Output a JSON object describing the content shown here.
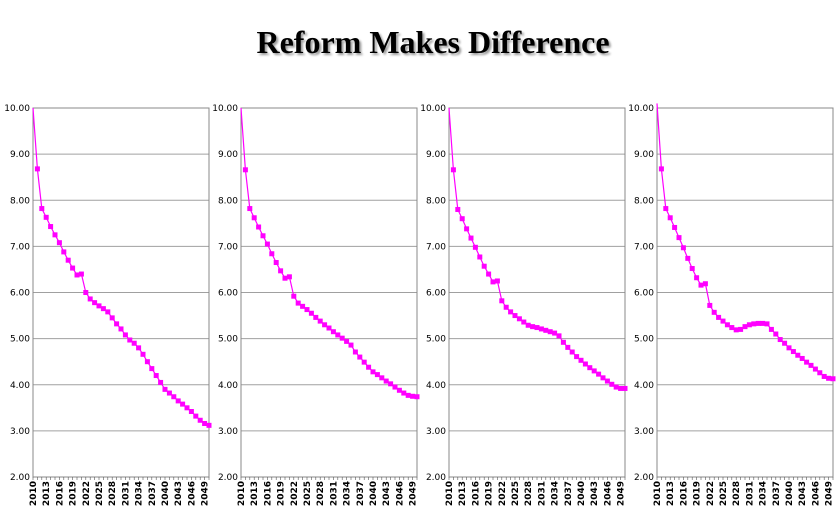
{
  "title": "Reform Makes Difference",
  "colors": {
    "series": "#ff00ff",
    "grid": "#a0a0a0",
    "frame": "#888888"
  },
  "chart_data": [
    {
      "type": "line",
      "marker": "square",
      "ylim": [
        2,
        10
      ],
      "yticks": [
        "2.00",
        "3.00",
        "4.00",
        "5.00",
        "6.00",
        "7.00",
        "8.00",
        "9.00",
        "10.00"
      ],
      "xticks": [
        "2010",
        "2013",
        "2016",
        "2019",
        "2022",
        "2025",
        "2028",
        "2031",
        "2034",
        "2037",
        "2040",
        "2043",
        "2046",
        "2049"
      ],
      "x": [
        2010,
        2011,
        2012,
        2013,
        2014,
        2015,
        2016,
        2017,
        2018,
        2019,
        2020,
        2021,
        2022,
        2023,
        2024,
        2025,
        2026,
        2027,
        2028,
        2029,
        2030,
        2031,
        2032,
        2033,
        2034,
        2035,
        2036,
        2037,
        2038,
        2039,
        2040,
        2041,
        2042,
        2043,
        2044,
        2045,
        2046,
        2047,
        2048,
        2049,
        2050
      ],
      "values": [
        10.0,
        8.68,
        7.82,
        7.63,
        7.43,
        7.25,
        7.08,
        6.88,
        6.7,
        6.53,
        6.38,
        6.4,
        6.0,
        5.86,
        5.78,
        5.71,
        5.65,
        5.58,
        5.45,
        5.32,
        5.21,
        5.08,
        4.97,
        4.9,
        4.8,
        4.66,
        4.5,
        4.35,
        4.2,
        4.05,
        3.9,
        3.82,
        3.74,
        3.65,
        3.58,
        3.5,
        3.42,
        3.32,
        3.23,
        3.16,
        3.12
      ],
      "grid": true
    },
    {
      "type": "line",
      "marker": "square",
      "ylim": [
        2,
        10
      ],
      "yticks": [
        "2.00",
        "3.00",
        "4.00",
        "5.00",
        "6.00",
        "7.00",
        "8.00",
        "9.00",
        "10.00"
      ],
      "xticks": [
        "2010",
        "2013",
        "2016",
        "2019",
        "2022",
        "2025",
        "2028",
        "2031",
        "2034",
        "2037",
        "2040",
        "2043",
        "2046",
        "2049"
      ],
      "x": [
        2010,
        2011,
        2012,
        2013,
        2014,
        2015,
        2016,
        2017,
        2018,
        2019,
        2020,
        2021,
        2022,
        2023,
        2024,
        2025,
        2026,
        2027,
        2028,
        2029,
        2030,
        2031,
        2032,
        2033,
        2034,
        2035,
        2036,
        2037,
        2038,
        2039,
        2040,
        2041,
        2042,
        2043,
        2044,
        2045,
        2046,
        2047,
        2048,
        2049,
        2050
      ],
      "values": [
        10.0,
        8.66,
        7.82,
        7.62,
        7.42,
        7.23,
        7.05,
        6.84,
        6.65,
        6.47,
        6.31,
        6.34,
        5.92,
        5.77,
        5.7,
        5.63,
        5.55,
        5.46,
        5.38,
        5.3,
        5.23,
        5.15,
        5.08,
        5.01,
        4.94,
        4.86,
        4.71,
        4.6,
        4.49,
        4.38,
        4.28,
        4.22,
        4.15,
        4.08,
        4.02,
        3.95,
        3.88,
        3.82,
        3.77,
        3.75,
        3.74
      ],
      "grid": true
    },
    {
      "type": "line",
      "marker": "square",
      "ylim": [
        2,
        10
      ],
      "yticks": [
        "2.00",
        "3.00",
        "4.00",
        "5.00",
        "6.00",
        "7.00",
        "8.00",
        "9.00",
        "10.00"
      ],
      "xticks": [
        "2010",
        "2013",
        "2016",
        "2019",
        "2022",
        "2025",
        "2028",
        "2031",
        "2034",
        "2037",
        "2040",
        "2043",
        "2046",
        "2049"
      ],
      "x": [
        2010,
        2011,
        2012,
        2013,
        2014,
        2015,
        2016,
        2017,
        2018,
        2019,
        2020,
        2021,
        2022,
        2023,
        2024,
        2025,
        2026,
        2027,
        2028,
        2029,
        2030,
        2031,
        2032,
        2033,
        2034,
        2035,
        2036,
        2037,
        2038,
        2039,
        2040,
        2041,
        2042,
        2043,
        2044,
        2045,
        2046,
        2047,
        2048,
        2049,
        2050
      ],
      "values": [
        10.0,
        8.66,
        7.8,
        7.6,
        7.38,
        7.18,
        6.98,
        6.77,
        6.57,
        6.4,
        6.23,
        6.25,
        5.82,
        5.68,
        5.58,
        5.5,
        5.43,
        5.36,
        5.29,
        5.26,
        5.24,
        5.21,
        5.18,
        5.15,
        5.12,
        5.06,
        4.92,
        4.81,
        4.71,
        4.61,
        4.53,
        4.45,
        4.37,
        4.3,
        4.23,
        4.15,
        4.08,
        4.01,
        3.95,
        3.92,
        3.92
      ],
      "grid": true
    },
    {
      "type": "line",
      "marker": "square",
      "ylim": [
        2,
        10
      ],
      "yticks": [
        "2.00",
        "3.00",
        "4.00",
        "5.00",
        "6.00",
        "7.00",
        "8.00",
        "9.00",
        "10.00"
      ],
      "xticks": [
        "2010",
        "2013",
        "2016",
        "2019",
        "2022",
        "2025",
        "2028",
        "2031",
        "2034",
        "2037",
        "2040",
        "2043",
        "2046",
        "2049"
      ],
      "x": [
        2010,
        2011,
        2012,
        2013,
        2014,
        2015,
        2016,
        2017,
        2018,
        2019,
        2020,
        2021,
        2022,
        2023,
        2024,
        2025,
        2026,
        2027,
        2028,
        2029,
        2030,
        2031,
        2032,
        2033,
        2034,
        2035,
        2036,
        2037,
        2038,
        2039,
        2040,
        2041,
        2042,
        2043,
        2044,
        2045,
        2046,
        2047,
        2048,
        2049,
        2050
      ],
      "values": [
        10.1,
        8.68,
        7.82,
        7.62,
        7.41,
        7.19,
        6.97,
        6.74,
        6.52,
        6.32,
        6.16,
        6.19,
        5.72,
        5.57,
        5.46,
        5.38,
        5.3,
        5.24,
        5.19,
        5.2,
        5.26,
        5.3,
        5.32,
        5.33,
        5.33,
        5.32,
        5.2,
        5.1,
        4.98,
        4.9,
        4.8,
        4.72,
        4.64,
        4.57,
        4.49,
        4.42,
        4.34,
        4.26,
        4.18,
        4.14,
        4.13
      ],
      "grid": true
    }
  ]
}
